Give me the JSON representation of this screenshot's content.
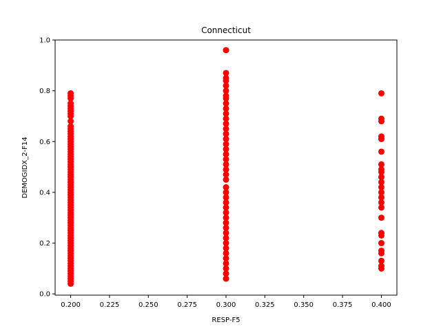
{
  "chart_data": {
    "type": "scatter",
    "title": "Connecticut",
    "xlabel": "RESP-F5",
    "ylabel": "DEMOGIDX_2-F14",
    "xlim": [
      0.19,
      0.41
    ],
    "ylim": [
      -0.005,
      1.0
    ],
    "xticks": [
      "0.200",
      "0.225",
      "0.250",
      "0.275",
      "0.300",
      "0.325",
      "0.350",
      "0.375",
      "0.400"
    ],
    "xtick_values": [
      0.2,
      0.225,
      0.25,
      0.275,
      0.3,
      0.325,
      0.35,
      0.375,
      0.4
    ],
    "yticks": [
      "0.0",
      "0.2",
      "0.4",
      "0.6",
      "0.8",
      "1.0"
    ],
    "ytick_values": [
      0.0,
      0.2,
      0.4,
      0.6,
      0.8,
      1.0
    ],
    "grid": false,
    "marker_color": "#ff0000",
    "series": [
      {
        "x": 0.2,
        "y": [
          0.04,
          0.05,
          0.06,
          0.07,
          0.08,
          0.09,
          0.1,
          0.11,
          0.12,
          0.13,
          0.14,
          0.15,
          0.16,
          0.17,
          0.18,
          0.19,
          0.2,
          0.21,
          0.22,
          0.23,
          0.24,
          0.25,
          0.26,
          0.27,
          0.28,
          0.29,
          0.3,
          0.31,
          0.32,
          0.33,
          0.34,
          0.35,
          0.36,
          0.37,
          0.38,
          0.39,
          0.4,
          0.41,
          0.42,
          0.43,
          0.44,
          0.45,
          0.46,
          0.47,
          0.48,
          0.49,
          0.5,
          0.51,
          0.52,
          0.53,
          0.54,
          0.55,
          0.56,
          0.57,
          0.58,
          0.59,
          0.6,
          0.61,
          0.62,
          0.63,
          0.64,
          0.65,
          0.66,
          0.68,
          0.7,
          0.71,
          0.72,
          0.73,
          0.74,
          0.75,
          0.77,
          0.78,
          0.79
        ]
      },
      {
        "x": 0.3,
        "y": [
          0.06,
          0.08,
          0.1,
          0.12,
          0.14,
          0.16,
          0.18,
          0.2,
          0.22,
          0.24,
          0.26,
          0.28,
          0.3,
          0.32,
          0.34,
          0.36,
          0.38,
          0.4,
          0.42,
          0.45,
          0.47,
          0.49,
          0.51,
          0.53,
          0.55,
          0.57,
          0.59,
          0.61,
          0.63,
          0.65,
          0.67,
          0.69,
          0.71,
          0.73,
          0.75,
          0.77,
          0.78,
          0.8,
          0.82,
          0.84,
          0.85,
          0.87,
          0.96
        ]
      },
      {
        "x": 0.4,
        "y": [
          0.1,
          0.11,
          0.13,
          0.16,
          0.17,
          0.2,
          0.23,
          0.24,
          0.3,
          0.34,
          0.36,
          0.38,
          0.4,
          0.42,
          0.44,
          0.46,
          0.48,
          0.49,
          0.51,
          0.56,
          0.61,
          0.62,
          0.68,
          0.69,
          0.79
        ]
      }
    ]
  }
}
